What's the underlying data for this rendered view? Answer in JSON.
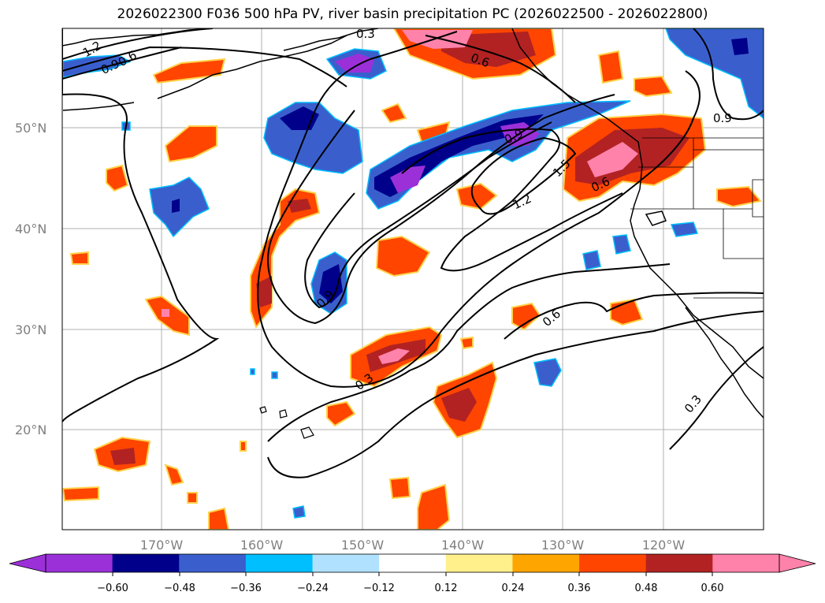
{
  "title": "2026022300 F036 500 hPa PV, river basin precipitation PC (2026022500 - 2026022800)",
  "map": {
    "lat_ticks": [
      "50°N",
      "40°N",
      "30°N",
      "20°N"
    ],
    "lon_ticks": [
      "170°W",
      "160°W",
      "150°W",
      "140°W",
      "130°W",
      "120°W"
    ],
    "gridline_color": "#b0b0b0"
  },
  "contours": {
    "labels": [
      "1.2",
      "0.9",
      "0.6",
      "0.3",
      "0.6",
      "0.9",
      "0.9",
      "1.5",
      "1.2",
      "0.6",
      "0.6",
      "0.3",
      "0.3",
      "0.9"
    ]
  },
  "colorbar": {
    "colors": [
      "#9b30d9",
      "#00008b",
      "#3a5fcd",
      "#00bfff",
      "#b0e2ff",
      "#ffffff",
      "#fff08c",
      "#ffa500",
      "#ff4500",
      "#b22222",
      "#ff82ab"
    ],
    "ticks": [
      "−0.60",
      "−0.48",
      "−0.36",
      "−0.24",
      "−0.12",
      "0.12",
      "0.24",
      "0.36",
      "0.48",
      "0.60"
    ]
  }
}
